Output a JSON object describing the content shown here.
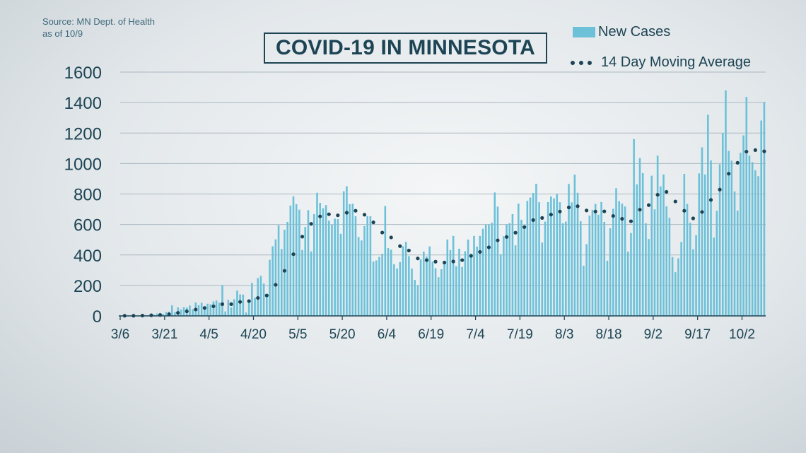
{
  "source": {
    "line1": "Source: MN Dept. of Health",
    "line2": "as of 10/9"
  },
  "title": "COVID-19 IN MINNESOTA",
  "legend": {
    "bars_label": "New Cases",
    "avg_label": "14 Day Moving Average"
  },
  "colors": {
    "bars": "#6cc1d9",
    "average": "#1d4454",
    "text": "#1d4454",
    "grid": "#aab8c0"
  },
  "chart_data": {
    "type": "bar",
    "title": "COVID-19 IN MINNESOTA",
    "xlabel": "",
    "ylabel": "",
    "ylim": [
      0,
      1600
    ],
    "yticks": [
      "0",
      "200",
      "400",
      "600",
      "800",
      "1000",
      "1200",
      "1400",
      "1600"
    ],
    "xticks": [
      "3/6",
      "3/21",
      "4/5",
      "4/20",
      "5/5",
      "5/20",
      "6/4",
      "6/19",
      "7/4",
      "7/19",
      "8/3",
      "8/18",
      "9/2",
      "9/17",
      "10/2"
    ],
    "grid": true,
    "legend_position": "top-right",
    "series": [
      {
        "name": "New Cases",
        "type": "bar",
        "start_date": "3/6",
        "values": [
          1,
          1,
          1,
          2,
          2,
          2,
          2,
          3,
          5,
          5,
          13,
          7,
          16,
          19,
          13,
          25,
          28,
          69,
          25,
          56,
          42,
          57,
          54,
          68,
          44,
          88,
          70,
          86,
          65,
          80,
          76,
          95,
          101,
          86,
          203,
          29,
          105,
          55,
          109,
          166,
          141,
          140,
          22,
          106,
          216,
          120,
          248,
          263,
          212,
          121,
          368,
          457,
          502,
          595,
          439,
          565,
          617,
          724,
          785,
          733,
          697,
          433,
          584,
          694,
          423,
          668,
          808,
          742,
          706,
          727,
          625,
          598,
          638,
          635,
          539,
          818,
          851,
          733,
          736,
          654,
          518,
          495,
          590,
          655,
          654,
          357,
          364,
          387,
          408,
          721,
          445,
          434,
          339,
          311,
          353,
          457,
          486,
          392,
          311,
          236,
          202,
          371,
          422,
          390,
          456,
          356,
          313,
          254,
          306,
          350,
          501,
          432,
          525,
          326,
          441,
          321,
          424,
          501,
          409,
          525,
          455,
          525,
          572,
          599,
          601,
          611,
          810,
          717,
          404,
          523,
          601,
          608,
          668,
          463,
          737,
          631,
          582,
          755,
          777,
          807,
          867,
          746,
          481,
          619,
          747,
          784,
          771,
          802,
          746,
          608,
          619,
          866,
          745,
          927,
          808,
          621,
          329,
          471,
          658,
          696,
          735,
          664,
          748,
          617,
          362,
          575,
          703,
          838,
          753,
          737,
          718,
          422,
          544,
          1161,
          863,
          1036,
          937,
          608,
          505,
          920,
          699,
          1052,
          850,
          928,
          719,
          644,
          386,
          287,
          378,
          485,
          932,
          735,
          611,
          437,
          530,
          935,
          1106,
          928,
          1320,
          1020,
          514,
          690,
          995,
          1199,
          1480,
          1083,
          1019,
          817,
          691,
          1070,
          1185,
          1437,
          1052,
          1009,
          955,
          917,
          1282,
          1404
        ]
      },
      {
        "name": "14 Day Moving Average",
        "type": "line",
        "style": "dotted",
        "start_date": "3/6",
        "values": [
          1,
          1,
          1,
          1,
          1,
          2,
          2,
          2,
          3,
          3,
          4,
          4,
          5,
          6,
          7,
          9,
          11,
          15,
          16,
          20,
          23,
          27,
          30,
          34,
          36,
          42,
          45,
          49,
          52,
          56,
          60,
          63,
          66,
          69,
          77,
          75,
          78,
          77,
          81,
          87,
          92,
          97,
          96,
          97,
          106,
          108,
          118,
          129,
          134,
          134,
          150,
          175,
          204,
          241,
          266,
          296,
          329,
          363,
          405,
          449,
          495,
          520,
          549,
          591,
          604,
          619,
          642,
          653,
          661,
          670,
          667,
          662,
          657,
          660,
          656,
          665,
          677,
          681,
          683,
          690,
          683,
          676,
          664,
          649,
          648,
          614,
          582,
          562,
          547,
          542,
          529,
          515,
          496,
          478,
          458,
          449,
          444,
          429,
          410,
          390,
          377,
          374,
          369,
          366,
          368,
          359,
          356,
          346,
          343,
          350,
          356,
          353,
          357,
          360,
          358,
          366,
          379,
          386,
          394,
          405,
          412,
          420,
          428,
          440,
          450,
          460,
          480,
          496,
          496,
          508,
          518,
          528,
          539,
          546,
          565,
          574,
          583,
          601,
          612,
          629,
          647,
          650,
          643,
          645,
          653,
          665,
          677,
          680,
          685,
          691,
          699,
          712,
          714,
          720,
          720,
          720,
          699,
          692,
          691,
          690,
          685,
          684,
          685,
          686,
          677,
          665,
          656,
          654,
          654,
          637,
          620,
          617,
          621,
          651,
          672,
          697,
          719,
          727,
          727,
          749,
          766,
          795,
          802,
          817,
          814,
          808,
          778,
          751,
          716,
          683,
          690,
          671,
          646,
          640,
          639,
          645,
          682,
          711,
          717,
          761,
          802,
          807,
          829,
          862,
          876,
          933,
          986,
          992,
          1005,
          1034,
          1074,
          1078,
          1110,
          1090,
          1088,
          1118,
          1076,
          1080,
          1082
        ]
      }
    ]
  }
}
